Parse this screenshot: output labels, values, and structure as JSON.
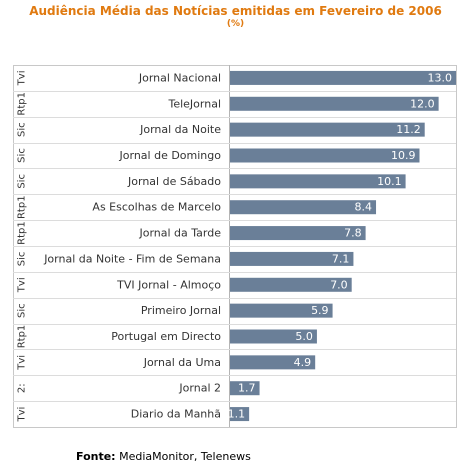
{
  "chart_data": {
    "type": "bar",
    "orientation": "horizontal",
    "title": "Audiência Média das Notícias emitidas em Fevereiro de 2006",
    "subtitle": "(%)",
    "categories": [
      "Jornal Nacional",
      "TeleJornal",
      "Jornal da Noite",
      "Jornal de Domingo",
      "Jornal de Sábado",
      "As Escolhas de Marcelo",
      "Jornal da Tarde",
      "Jornal da Noite - Fim de Semana",
      "TVI Jornal - Almoço",
      "Primeiro Jornal",
      "Portugal em Directo",
      "Jornal da Uma",
      "Jornal 2",
      "Diario da Manhã"
    ],
    "values": [
      13.0,
      12.0,
      11.2,
      10.9,
      10.1,
      8.4,
      7.8,
      7.1,
      7.0,
      5.9,
      5.0,
      4.9,
      1.7,
      1.1
    ],
    "value_labels": [
      "13.0",
      "12.0",
      "11.2",
      "10.9",
      "10.1",
      "8.4",
      "7.8",
      "7.1",
      "7.0",
      "5.9",
      "5.0",
      "4.9",
      "1.7",
      "1.1"
    ],
    "channels": [
      "Tvi",
      "Rtp1",
      "Sic",
      "Sic",
      "Sic",
      "Rtp1",
      "Rtp1",
      "Sic",
      "Tvi",
      "Sic",
      "Rtp1",
      "Tvi",
      "2:",
      "Tvi"
    ],
    "xlim": [
      0,
      13.0
    ],
    "grid": true,
    "bar_color": "#6a7f98"
  },
  "footer": {
    "label": "Fonte:",
    "text": " MediaMonitor, Telenews"
  }
}
